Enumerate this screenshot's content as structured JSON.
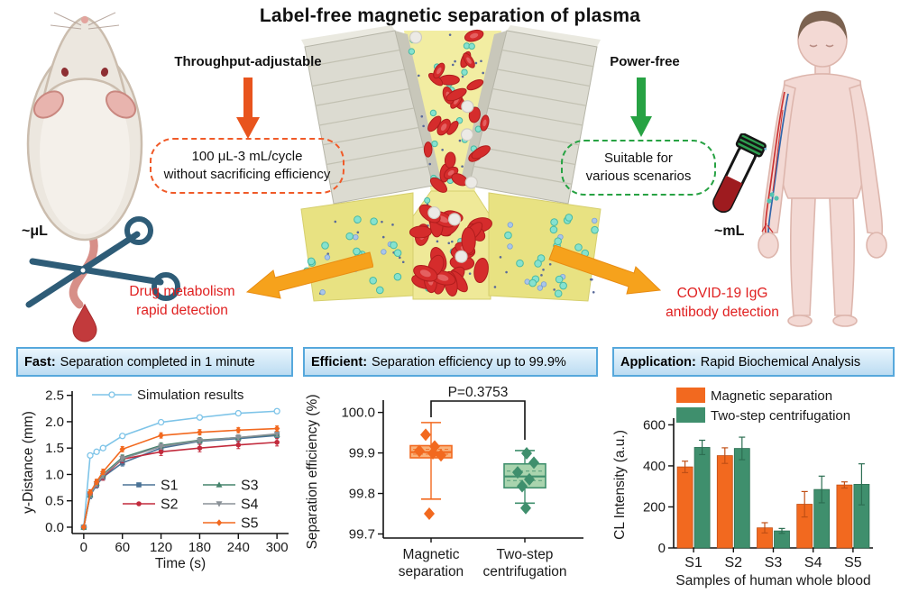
{
  "title": "Label-free magnetic separation of plasma",
  "top": {
    "throughput": {
      "label": "Throughput-adjustable",
      "box": [
        "100 μL-3 mL/cycle",
        "without sacrificing efficiency"
      ]
    },
    "power": {
      "label": "Power-free",
      "box": [
        "Suitable for",
        "various scenarios"
      ]
    },
    "mouse_scale": "~μL",
    "human_scale": "~mL",
    "app_left": [
      "Drug metabolism",
      "rapid detection"
    ],
    "app_right": [
      "COVID-19 IgG",
      "antibody detection"
    ]
  },
  "panels": [
    {
      "bold": "Fast:",
      "rest": "Separation completed in 1 minute"
    },
    {
      "bold": "Efficient:",
      "rest": "Separation efficiency up to 99.9%"
    },
    {
      "bold": "Application:",
      "rest": "Rapid Biochemical Analysis"
    }
  ],
  "chart_data": [
    {
      "type": "line",
      "xlabel": "Time (s)",
      "ylabel": "y-Distance (mm)",
      "xlim": [
        -18,
        318
      ],
      "ylim": [
        -0.12,
        2.58
      ],
      "xticks": [
        0,
        60,
        120,
        180,
        240,
        300
      ],
      "yticks": [
        0.0,
        0.5,
        1.0,
        1.5,
        2.0,
        2.5
      ],
      "x": [
        0,
        10,
        20,
        30,
        60,
        120,
        180,
        240,
        300
      ],
      "series": [
        {
          "name": "Simulation results",
          "color": "#7ec4e8",
          "marker": "circle-open",
          "err": 0.05,
          "values": [
            0,
            1.36,
            1.43,
            1.5,
            1.73,
            1.99,
            2.08,
            2.16,
            2.2
          ]
        },
        {
          "name": "S1",
          "color": "#4a7296",
          "marker": "square",
          "err": 0.06,
          "values": [
            0,
            0.6,
            0.8,
            0.95,
            1.22,
            1.5,
            1.63,
            1.68,
            1.74
          ]
        },
        {
          "name": "S2",
          "color": "#c22a3c",
          "marker": "circle",
          "err": 0.07,
          "values": [
            0,
            0.64,
            0.83,
            0.96,
            1.29,
            1.43,
            1.5,
            1.56,
            1.61
          ]
        },
        {
          "name": "S3",
          "color": "#45836c",
          "marker": "triangle-up",
          "err": 0.05,
          "values": [
            0,
            0.62,
            0.84,
            1.0,
            1.32,
            1.55,
            1.65,
            1.7,
            1.76
          ]
        },
        {
          "name": "S4",
          "color": "#8a9197",
          "marker": "triangle-down",
          "err": 0.05,
          "values": [
            0,
            0.63,
            0.82,
            0.98,
            1.3,
            1.53,
            1.64,
            1.7,
            1.77
          ]
        },
        {
          "name": "S5",
          "color": "#f2691f",
          "marker": "diamond",
          "err": 0.05,
          "values": [
            0,
            0.66,
            0.86,
            1.05,
            1.48,
            1.74,
            1.8,
            1.84,
            1.87
          ]
        }
      ]
    },
    {
      "type": "box",
      "ylabel": "Separation efficiency (%)",
      "ylim": [
        99.69,
        100.017
      ],
      "yticks": [
        99.7,
        99.8,
        99.9,
        100.0
      ],
      "pvalue": "P=0.3753",
      "groups": [
        {
          "label": [
            "Magnetic",
            "separation"
          ],
          "color": "#f2691f",
          "fill": "#f9b27c",
          "whisker_low": 99.786,
          "q1": 99.888,
          "median": 99.902,
          "q3": 99.918,
          "whisker_high": 99.975,
          "points": [
            99.945,
            99.916,
            99.905,
            99.899,
            99.894,
            99.75
          ],
          "jitter": [
            -6,
            4,
            -13,
            2,
            11,
            -2
          ]
        },
        {
          "label": [
            "Two-step",
            "centrifugation"
          ],
          "color": "#3f8f6d",
          "fill": "#a9d4ae",
          "whisker_low": 99.776,
          "q1": 99.814,
          "median": 99.842,
          "q3": 99.873,
          "whisker_high": 99.906,
          "points": [
            99.899,
            99.876,
            99.852,
            99.835,
            99.818,
            99.764
          ],
          "jitter": [
            2,
            10,
            -8,
            5,
            -3,
            1
          ]
        }
      ]
    },
    {
      "type": "bar",
      "xlabel": "Samples of human whole blood",
      "ylabel": "CL Intensity (a.u.)",
      "ylim": [
        0,
        615
      ],
      "yticks": [
        0,
        200,
        400,
        600
      ],
      "categories": [
        "S1",
        "S2",
        "S3",
        "S4",
        "S5"
      ],
      "series": [
        {
          "name": "Magnetic separation",
          "color": "#f2691f",
          "edge": "#c14f15",
          "values": [
            395,
            450,
            98,
            213,
            307
          ],
          "errors": [
            28,
            38,
            25,
            62,
            15
          ]
        },
        {
          "name": "Two-step centrifugation",
          "color": "#3f8f6d",
          "edge": "#2c6e52",
          "values": [
            490,
            485,
            83,
            285,
            310
          ],
          "errors": [
            35,
            55,
            12,
            65,
            100
          ]
        }
      ]
    }
  ],
  "colors": {
    "accent_orange": "#f05a28",
    "accent_green": "#27a243",
    "red_text": "#e02020",
    "side_arrow": "#f6a21c",
    "device": {
      "magnet_face": "#dcdbd1",
      "magnet_side": "#c8c7ba",
      "magnet_top": "#eae9e0",
      "magnet_line": "#c2c1b2",
      "channel": "#f2eda2",
      "funnel": "#efe998",
      "sheet": "#e8e282",
      "sheet_edge": "#d6cf6e",
      "rbc": "#d52c2c",
      "rbc_dark": "#b01d1d",
      "rbc_light": "#e46060",
      "wbc": "#eceae6",
      "wbc_edge": "#cfccc2",
      "plasma_dot": "#86e2cf",
      "plasma_dot_edge": "#49b9a3",
      "blue_dot": "#a9c6ea",
      "blue_dot_edge": "#7aa0d4",
      "tiny_dot": "#5a6a9a"
    }
  }
}
